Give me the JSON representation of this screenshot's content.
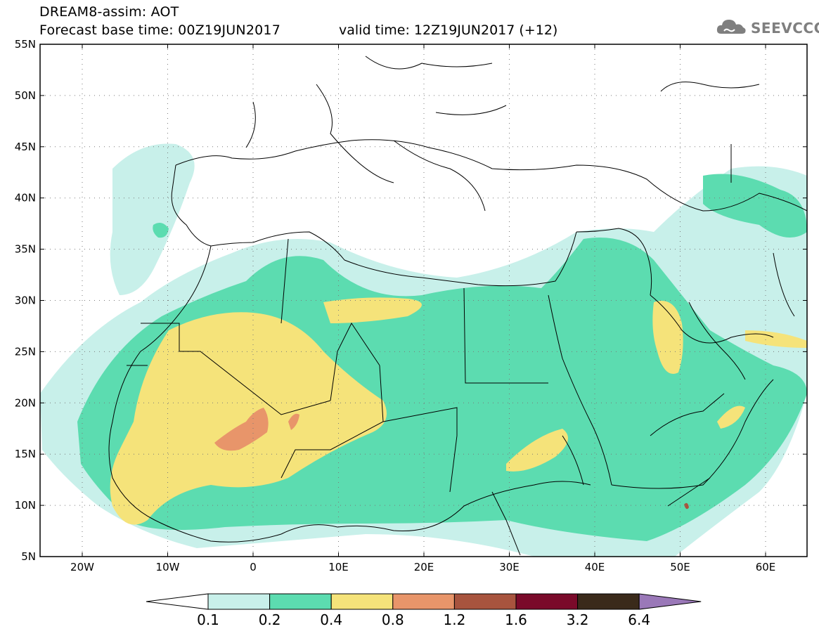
{
  "header": {
    "line1": "DREAM8-assim: AOT",
    "line2": "Forecast base time: 00Z19JUN2017",
    "valid": "valid time: 12Z19JUN2017 (+12)",
    "logo_text": "SEEVCCC"
  },
  "map": {
    "lat_labels": [
      "55N",
      "50N",
      "45N",
      "40N",
      "35N",
      "30N",
      "25N",
      "20N",
      "15N",
      "10N",
      "5N"
    ],
    "lon_labels": [
      "20W",
      "10W",
      "0",
      "10E",
      "20E",
      "30E",
      "40E",
      "50E",
      "60E"
    ],
    "frame_color": "#000000"
  },
  "legend": {
    "labels": [
      "0.1",
      "0.2",
      "0.4",
      "0.8",
      "1.2",
      "1.6",
      "3.2",
      "6.4"
    ],
    "colors": [
      "#c8f0ea",
      "#5cdcb0",
      "#f5e37a",
      "#e8956a",
      "#a8543e",
      "#7a0a2a",
      "#3a2a1a",
      "#9a78b8"
    ]
  }
}
